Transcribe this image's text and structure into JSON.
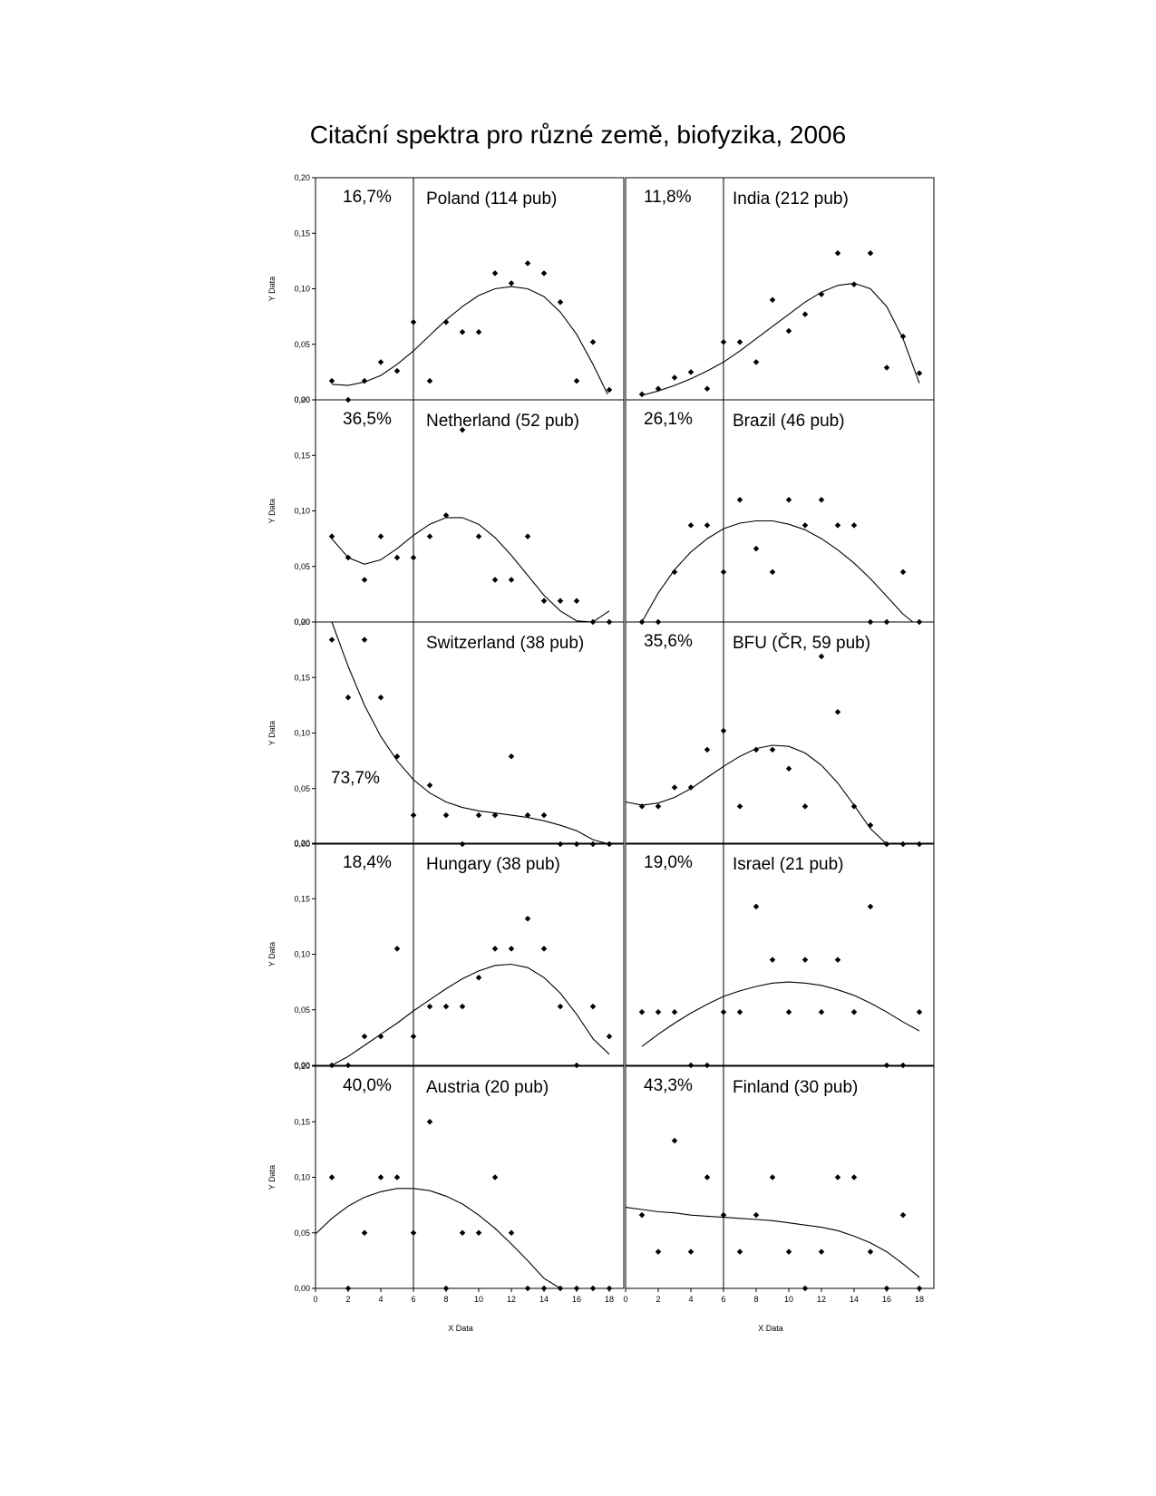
{
  "title": "Citační spektra pro různé země, biofyzika, 2006",
  "x_axis_label": "X Data",
  "y_axis_label": "Y Data",
  "x_ticks": [
    "0",
    "2",
    "4",
    "6",
    "8",
    "10",
    "12",
    "14",
    "16",
    "18"
  ],
  "y_ticks": [
    "0,00",
    "0,05",
    "0,10",
    "0,15",
    "0,20"
  ],
  "chart_data": [
    {
      "type": "scatter",
      "title": "Poland (114 pub)",
      "annotation": "16,7%",
      "xlim": [
        0,
        18
      ],
      "ylim": [
        0,
        0.2
      ],
      "x": [
        1,
        2,
        3,
        4,
        5,
        6,
        7,
        8,
        9,
        10,
        11,
        12,
        13,
        14,
        15,
        16,
        17,
        18
      ],
      "y": [
        0.017,
        0,
        0.017,
        0.034,
        0.026,
        0.07,
        0.017,
        0.07,
        0.061,
        0.061,
        0.114,
        0.105,
        0.123,
        0.114,
        0.088,
        0.017,
        0.052,
        0.009
      ],
      "fit": [
        [
          1,
          0.014
        ],
        [
          2,
          0.013
        ],
        [
          3,
          0.016
        ],
        [
          4,
          0.022
        ],
        [
          5,
          0.032
        ],
        [
          6,
          0.044
        ],
        [
          7,
          0.058
        ],
        [
          8,
          0.072
        ],
        [
          9,
          0.084
        ],
        [
          10,
          0.094
        ],
        [
          11,
          0.1
        ],
        [
          12,
          0.102
        ],
        [
          13,
          0.1
        ],
        [
          14,
          0.093
        ],
        [
          15,
          0.079
        ],
        [
          16,
          0.059
        ],
        [
          17,
          0.032
        ],
        [
          17.9,
          0.005
        ]
      ]
    },
    {
      "type": "scatter",
      "title": "India (212 pub)",
      "annotation": "11,8%",
      "xlim": [
        0,
        18
      ],
      "ylim": [
        0,
        0.2
      ],
      "x": [
        1,
        2,
        3,
        4,
        5,
        6,
        7,
        8,
        9,
        10,
        11,
        12,
        13,
        14,
        15,
        16,
        17,
        18
      ],
      "y": [
        0.005,
        0.01,
        0.02,
        0.025,
        0.01,
        0.052,
        0.052,
        0.034,
        0.09,
        0.062,
        0.077,
        0.095,
        0.132,
        0.104,
        0.132,
        0.029,
        0.057,
        0.024
      ],
      "fit": [
        [
          1,
          0.004
        ],
        [
          2,
          0.008
        ],
        [
          3,
          0.013
        ],
        [
          4,
          0.019
        ],
        [
          5,
          0.026
        ],
        [
          6,
          0.034
        ],
        [
          7,
          0.044
        ],
        [
          8,
          0.055
        ],
        [
          9,
          0.066
        ],
        [
          10,
          0.077
        ],
        [
          11,
          0.088
        ],
        [
          12,
          0.097
        ],
        [
          13,
          0.103
        ],
        [
          14,
          0.105
        ],
        [
          15,
          0.1
        ],
        [
          16,
          0.084
        ],
        [
          17,
          0.055
        ],
        [
          18,
          0.015
        ]
      ]
    },
    {
      "type": "scatter",
      "title": "Netherland (52 pub)",
      "annotation": "36,5%",
      "xlim": [
        0,
        18
      ],
      "ylim": [
        0,
        0.2
      ],
      "x": [
        1,
        2,
        3,
        4,
        5,
        6,
        7,
        8,
        9,
        10,
        11,
        12,
        13,
        14,
        15,
        16,
        17,
        18
      ],
      "y": [
        0.077,
        0.058,
        0.038,
        0.077,
        0.058,
        0.058,
        0.077,
        0.096,
        0.173,
        0.077,
        0.038,
        0.038,
        0.077,
        0.019,
        0.019,
        0.019,
        0,
        0
      ],
      "fit": [
        [
          1,
          0.075
        ],
        [
          2,
          0.058
        ],
        [
          3,
          0.052
        ],
        [
          4,
          0.056
        ],
        [
          5,
          0.066
        ],
        [
          6,
          0.078
        ],
        [
          7,
          0.088
        ],
        [
          8,
          0.094
        ],
        [
          9,
          0.094
        ],
        [
          10,
          0.088
        ],
        [
          11,
          0.076
        ],
        [
          12,
          0.06
        ],
        [
          13,
          0.042
        ],
        [
          14,
          0.024
        ],
        [
          15,
          0.01
        ],
        [
          16,
          0.001
        ],
        [
          17,
          -0.001
        ],
        [
          18,
          0.01
        ]
      ]
    },
    {
      "type": "scatter",
      "title": "Brazil (46 pub)",
      "annotation": "26,1%",
      "xlim": [
        0,
        18
      ],
      "ylim": [
        0,
        0.2
      ],
      "x": [
        1,
        2,
        3,
        4,
        5,
        6,
        7,
        8,
        9,
        10,
        11,
        12,
        13,
        14,
        15,
        16,
        17,
        18
      ],
      "y": [
        0,
        0,
        0.045,
        0.087,
        0.087,
        0.045,
        0.11,
        0.066,
        0.045,
        0.11,
        0.087,
        0.11,
        0.087,
        0.087,
        0,
        0,
        0.045,
        0
      ],
      "fit": [
        [
          1,
          0
        ],
        [
          2,
          0.026
        ],
        [
          3,
          0.047
        ],
        [
          4,
          0.063
        ],
        [
          5,
          0.075
        ],
        [
          6,
          0.084
        ],
        [
          7,
          0.089
        ],
        [
          8,
          0.091
        ],
        [
          9,
          0.091
        ],
        [
          10,
          0.088
        ],
        [
          11,
          0.083
        ],
        [
          12,
          0.075
        ],
        [
          13,
          0.065
        ],
        [
          14,
          0.053
        ],
        [
          15,
          0.039
        ],
        [
          16,
          0.023
        ],
        [
          17,
          0.007
        ],
        [
          17.6,
          -0.004
        ]
      ]
    },
    {
      "type": "scatter",
      "title": "Switzerland (38 pub)",
      "annotation": "73,7%",
      "xlim": [
        0,
        18
      ],
      "ylim": [
        0,
        0.2
      ],
      "x": [
        1,
        2,
        3,
        4,
        5,
        6,
        7,
        8,
        9,
        10,
        11,
        12,
        13,
        14,
        15,
        16,
        17,
        18
      ],
      "y": [
        0.184,
        0.132,
        0.184,
        0.132,
        0.079,
        0.026,
        0.053,
        0.026,
        0,
        0.026,
        0.026,
        0.079,
        0.026,
        0.026,
        0,
        0,
        0,
        0
      ],
      "fit": [
        [
          1,
          0.2
        ],
        [
          2,
          0.16
        ],
        [
          3,
          0.125
        ],
        [
          4,
          0.097
        ],
        [
          5,
          0.075
        ],
        [
          6,
          0.058
        ],
        [
          7,
          0.046
        ],
        [
          8,
          0.038
        ],
        [
          9,
          0.033
        ],
        [
          10,
          0.03
        ],
        [
          11,
          0.028
        ],
        [
          12,
          0.026
        ],
        [
          13,
          0.024
        ],
        [
          14,
          0.021
        ],
        [
          15,
          0.017
        ],
        [
          16,
          0.012
        ],
        [
          17,
          0.004
        ],
        [
          18,
          -0.005
        ]
      ]
    },
    {
      "type": "scatter",
      "title": "BFU (ČR, 59 pub)",
      "annotation": "35,6%",
      "xlim": [
        0,
        18
      ],
      "ylim": [
        0,
        0.2
      ],
      "x": [
        1,
        2,
        3,
        4,
        5,
        6,
        7,
        8,
        9,
        10,
        11,
        12,
        13,
        14,
        15,
        16,
        17,
        18
      ],
      "y": [
        0.034,
        0.034,
        0.051,
        0.051,
        0.085,
        0.102,
        0.034,
        0.085,
        0.085,
        0.068,
        0.034,
        0.169,
        0.119,
        0.034,
        0.017,
        0,
        0,
        0
      ],
      "fit": [
        [
          0,
          0.038
        ],
        [
          1,
          0.035
        ],
        [
          2,
          0.037
        ],
        [
          3,
          0.042
        ],
        [
          4,
          0.05
        ],
        [
          5,
          0.06
        ],
        [
          6,
          0.07
        ],
        [
          7,
          0.079
        ],
        [
          8,
          0.086
        ],
        [
          9,
          0.089
        ],
        [
          10,
          0.088
        ],
        [
          11,
          0.082
        ],
        [
          12,
          0.071
        ],
        [
          13,
          0.055
        ],
        [
          14,
          0.035
        ],
        [
          15,
          0.014
        ],
        [
          16,
          -0.006
        ]
      ]
    },
    {
      "type": "scatter",
      "title": "Hungary (38 pub)",
      "annotation": "18,4%",
      "xlim": [
        0,
        18
      ],
      "ylim": [
        0,
        0.2
      ],
      "x": [
        1,
        2,
        3,
        4,
        5,
        6,
        7,
        8,
        9,
        10,
        11,
        12,
        13,
        14,
        15,
        16,
        17,
        18
      ],
      "y": [
        0,
        0,
        0.026,
        0.026,
        0.105,
        0.026,
        0.053,
        0.053,
        0.053,
        0.079,
        0.105,
        0.105,
        0.132,
        0.105,
        0.053,
        0,
        0.053,
        0.026
      ],
      "fit": [
        [
          1,
          0
        ],
        [
          2,
          0.008
        ],
        [
          3,
          0.018
        ],
        [
          4,
          0.028
        ],
        [
          5,
          0.038
        ],
        [
          6,
          0.049
        ],
        [
          7,
          0.059
        ],
        [
          8,
          0.069
        ],
        [
          9,
          0.078
        ],
        [
          10,
          0.085
        ],
        [
          11,
          0.09
        ],
        [
          12,
          0.091
        ],
        [
          13,
          0.088
        ],
        [
          14,
          0.079
        ],
        [
          15,
          0.065
        ],
        [
          16,
          0.046
        ],
        [
          17,
          0.024
        ],
        [
          18,
          0.01
        ]
      ]
    },
    {
      "type": "scatter",
      "title": "Israel (21 pub)",
      "annotation": "19,0%",
      "xlim": [
        0,
        18
      ],
      "ylim": [
        0,
        0.2
      ],
      "x": [
        1,
        2,
        3,
        4,
        5,
        6,
        7,
        8,
        9,
        10,
        11,
        12,
        13,
        14,
        15,
        16,
        17,
        18
      ],
      "y": [
        0.048,
        0.048,
        0.048,
        0,
        0,
        0.048,
        0.048,
        0.143,
        0.095,
        0.048,
        0.095,
        0.048,
        0.095,
        0.048,
        0.143,
        0,
        0,
        0.048
      ],
      "fit": [
        [
          1,
          0.017
        ],
        [
          2,
          0.028
        ],
        [
          3,
          0.038
        ],
        [
          4,
          0.047
        ],
        [
          5,
          0.055
        ],
        [
          6,
          0.062
        ],
        [
          7,
          0.067
        ],
        [
          8,
          0.071
        ],
        [
          9,
          0.074
        ],
        [
          10,
          0.075
        ],
        [
          11,
          0.074
        ],
        [
          12,
          0.072
        ],
        [
          13,
          0.068
        ],
        [
          14,
          0.063
        ],
        [
          15,
          0.056
        ],
        [
          16,
          0.048
        ],
        [
          17,
          0.039
        ],
        [
          18,
          0.031
        ]
      ]
    },
    {
      "type": "scatter",
      "title": "Austria (20 pub)",
      "annotation": "40,0%",
      "xlim": [
        0,
        18
      ],
      "ylim": [
        0,
        0.2
      ],
      "x": [
        1,
        2,
        3,
        4,
        5,
        6,
        7,
        8,
        9,
        10,
        11,
        12,
        13,
        14,
        15,
        16,
        17,
        18
      ],
      "y": [
        0.1,
        0,
        0.05,
        0.1,
        0.1,
        0.05,
        0.15,
        0,
        0.05,
        0.05,
        0.1,
        0.05,
        0,
        0,
        0,
        0,
        0,
        0
      ],
      "fit": [
        [
          0,
          0.049
        ],
        [
          1,
          0.063
        ],
        [
          2,
          0.074
        ],
        [
          3,
          0.082
        ],
        [
          4,
          0.087
        ],
        [
          5,
          0.09
        ],
        [
          6,
          0.09
        ],
        [
          7,
          0.088
        ],
        [
          8,
          0.083
        ],
        [
          9,
          0.076
        ],
        [
          10,
          0.066
        ],
        [
          11,
          0.054
        ],
        [
          12,
          0.04
        ],
        [
          13,
          0.025
        ],
        [
          14,
          0.009
        ],
        [
          15,
          -0.003
        ]
      ]
    },
    {
      "type": "scatter",
      "title": "Finland (30 pub)",
      "annotation": "43,3%",
      "xlim": [
        0,
        18
      ],
      "ylim": [
        0,
        0.2
      ],
      "x": [
        1,
        2,
        3,
        4,
        5,
        6,
        7,
        8,
        9,
        10,
        11,
        12,
        13,
        14,
        15,
        16,
        17,
        18
      ],
      "y": [
        0.066,
        0.033,
        0.133,
        0.033,
        0.1,
        0.066,
        0.033,
        0.066,
        0.1,
        0.033,
        0,
        0.033,
        0.1,
        0.1,
        0.033,
        0,
        0.066,
        0
      ],
      "fit": [
        [
          0,
          0.073
        ],
        [
          1,
          0.071
        ],
        [
          2,
          0.069
        ],
        [
          3,
          0.068
        ],
        [
          4,
          0.066
        ],
        [
          5,
          0.065
        ],
        [
          6,
          0.064
        ],
        [
          7,
          0.063
        ],
        [
          8,
          0.062
        ],
        [
          9,
          0.061
        ],
        [
          10,
          0.059
        ],
        [
          11,
          0.057
        ],
        [
          12,
          0.055
        ],
        [
          13,
          0.052
        ],
        [
          14,
          0.047
        ],
        [
          15,
          0.041
        ],
        [
          16,
          0.033
        ],
        [
          17,
          0.022
        ],
        [
          18,
          0.01
        ]
      ]
    }
  ]
}
